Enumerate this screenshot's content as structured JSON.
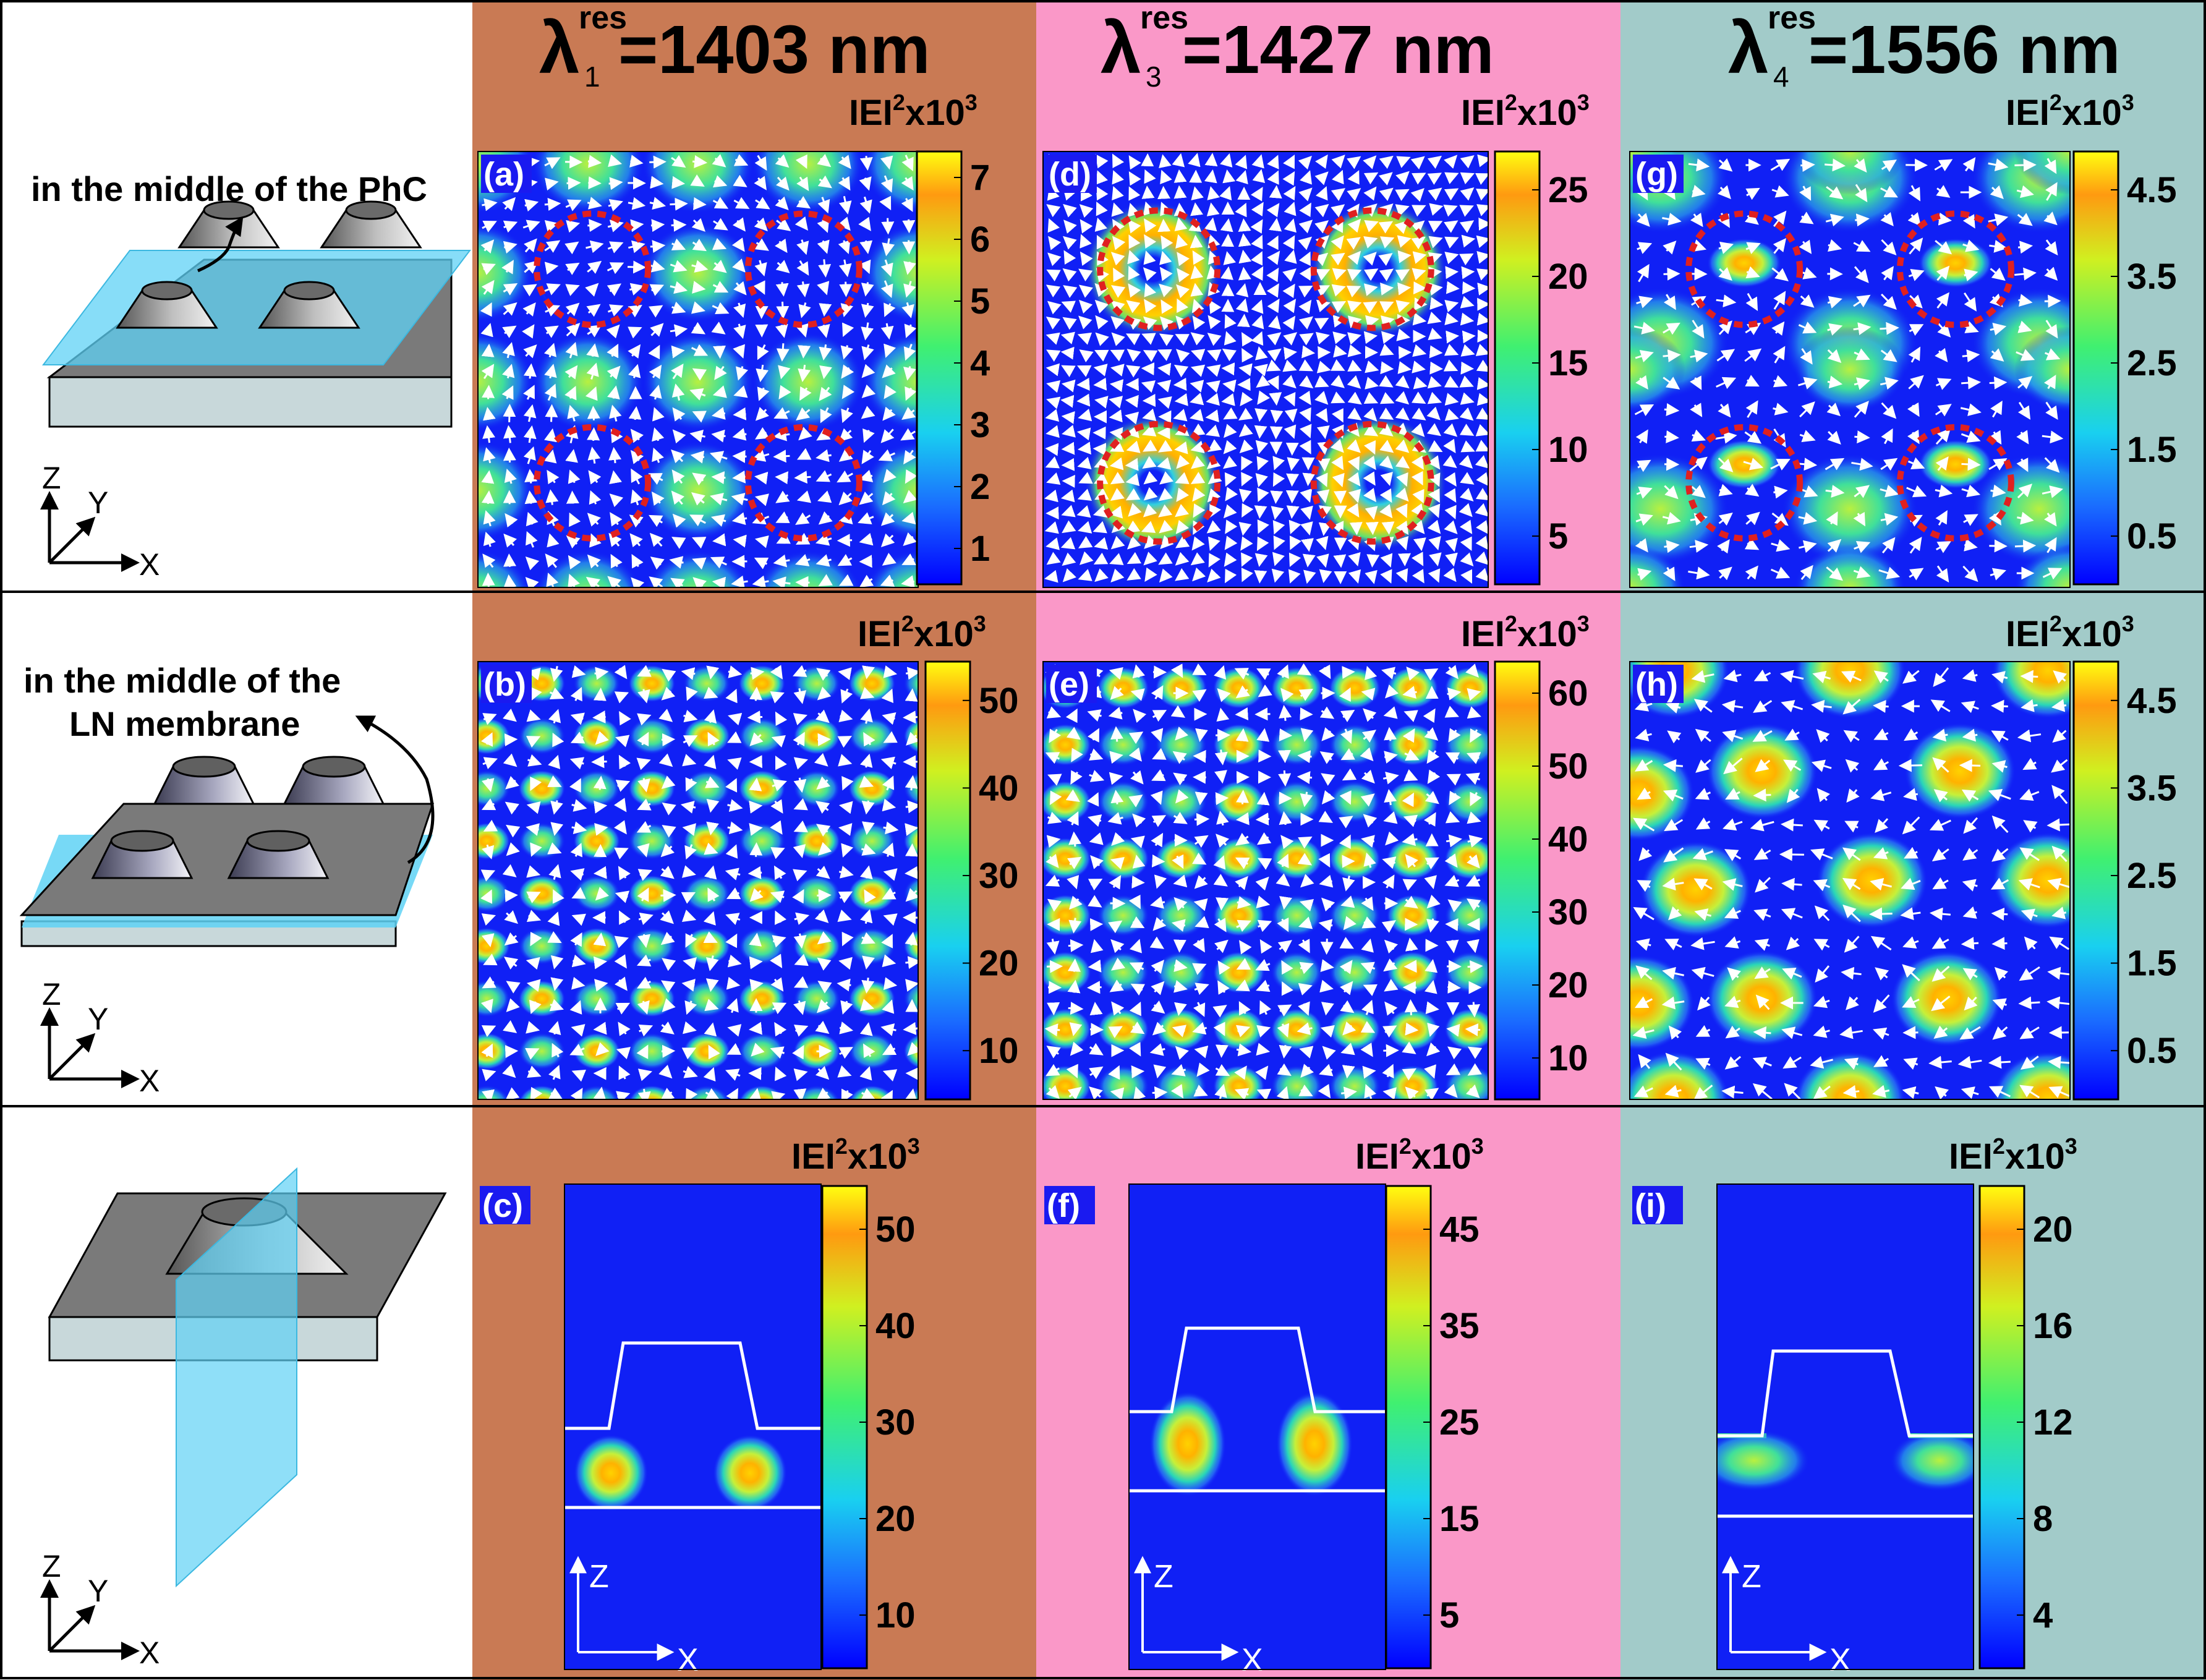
{
  "columns": [
    {
      "id": "col1",
      "lambda_sub": "1",
      "lambda_sup": "res",
      "value_text": "=1403 nm",
      "bg": "#c97a54"
    },
    {
      "id": "col2",
      "lambda_sub": "3",
      "lambda_sup": "res",
      "value_text": "=1427 nm",
      "bg": "#fa98c8"
    },
    {
      "id": "col3",
      "lambda_sub": "4",
      "lambda_sup": "res",
      "value_text": "=1556 nm",
      "bg": "#a2cbc9"
    }
  ],
  "colorbar_title": {
    "main": "IEI",
    "sup1": "2",
    "mid": "x10",
    "sup2": "3"
  },
  "rows": [
    {
      "id": "row1",
      "caption_lines": [
        "in the middle of the PhC"
      ],
      "axes": {
        "z": "Z",
        "y": "Y",
        "x": "X"
      }
    },
    {
      "id": "row2",
      "caption_lines": [
        "in the middle of the",
        "LN membrane"
      ],
      "axes": {
        "z": "Z",
        "y": "Y",
        "x": "X"
      }
    },
    {
      "id": "row3",
      "caption_lines": [],
      "axes": {
        "z": "Z",
        "y": "Y",
        "x": "X"
      }
    }
  ],
  "panels": [
    {
      "label": "(a)",
      "type": "xy-rings",
      "colorbar_ticks": [
        "7",
        "6",
        "5",
        "4",
        "3",
        "2",
        "1"
      ],
      "dashed_circles": true
    },
    {
      "label": "(d)",
      "type": "xy-donut",
      "colorbar_ticks": [
        "25",
        "20",
        "15",
        "10",
        "5"
      ],
      "dashed_circles": true
    },
    {
      "label": "(g)",
      "type": "xy-bars",
      "colorbar_ticks": [
        "4.5",
        "3.5",
        "2.5",
        "1.5",
        "0.5"
      ],
      "dashed_circles": true
    },
    {
      "label": "(b)",
      "type": "xy-grid",
      "colorbar_ticks": [
        "50",
        "40",
        "30",
        "20",
        "10"
      ],
      "dashed_circles": false
    },
    {
      "label": "(e)",
      "type": "xy-grid2",
      "colorbar_ticks": [
        "60",
        "50",
        "40",
        "30",
        "20",
        "10"
      ],
      "dashed_circles": false
    },
    {
      "label": "(h)",
      "type": "xy-spots",
      "colorbar_ticks": [
        "4.5",
        "3.5",
        "2.5",
        "1.5",
        "0.5"
      ],
      "dashed_circles": false
    },
    {
      "label": "(c)",
      "type": "xz",
      "colorbar_ticks": [
        "50",
        "40",
        "30",
        "20",
        "10"
      ],
      "axis_z": "Z",
      "axis_x": "X"
    },
    {
      "label": "(f)",
      "type": "xz",
      "colorbar_ticks": [
        "45",
        "35",
        "25",
        "15",
        "5"
      ],
      "axis_z": "Z",
      "axis_x": "X"
    },
    {
      "label": "(i)",
      "type": "xz",
      "colorbar_ticks": [
        "20",
        "16",
        "12",
        "8",
        "4"
      ],
      "axis_z": "Z",
      "axis_x": "X"
    }
  ],
  "colors": {
    "field_low": "#0a1ff5",
    "field_high": "#ffd400",
    "dashed_circle": "#e02020",
    "arrow": "#ffffff",
    "plane": "#5fd2f5",
    "border": "#000000"
  }
}
